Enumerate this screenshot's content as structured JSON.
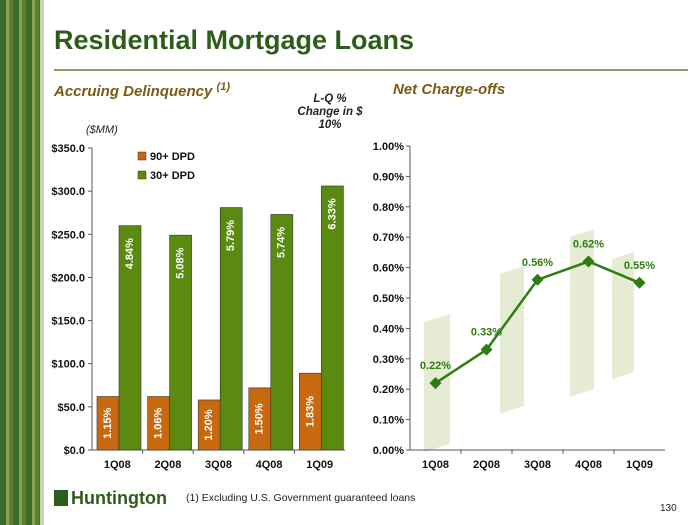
{
  "title": "Residential Mortgage Loans",
  "left_section": {
    "label": "Accruing Delinquency",
    "superscript": "(1)"
  },
  "right_section": {
    "label": "Net Charge-offs"
  },
  "lq_note": [
    "L-Q %",
    "Change in $",
    "10%"
  ],
  "units": "($MM)",
  "footnote": "(1)    Excluding U.S. Government guaranteed loans",
  "logo": "Huntington",
  "page_number": "130",
  "colors": {
    "brand_green": "#2e5c1a",
    "series_90": "#c8680f",
    "series_30": "#5a8a10",
    "line": "#2e7d10"
  },
  "chart_data": [
    {
      "type": "bar",
      "categories": [
        "1Q08",
        "2Q08",
        "3Q08",
        "4Q08",
        "1Q09"
      ],
      "ylim": [
        0,
        350
      ],
      "yticks": [
        "$0.0",
        "$50.0",
        "$100.0",
        "$150.0",
        "$200.0",
        "$250.0",
        "$300.0",
        "$350.0"
      ],
      "legend_placement": "top-right",
      "series": [
        {
          "name": "90+ DPD",
          "color": "#c8680f",
          "values": [
            62,
            62,
            58,
            72,
            89
          ],
          "labels": [
            "1.15%",
            "1.06%",
            "1.20%",
            "1.50%",
            "1.83%"
          ]
        },
        {
          "name": "30+ DPD",
          "color": "#5a8a10",
          "values": [
            260,
            249,
            281,
            273,
            306
          ],
          "labels": [
            "4.84%",
            "5.08%",
            "5.79%",
            "5.74%",
            "6.33%"
          ]
        }
      ]
    },
    {
      "type": "line",
      "categories": [
        "1Q08",
        "2Q08",
        "3Q08",
        "4Q08",
        "1Q09"
      ],
      "ylim": [
        0,
        1.0
      ],
      "yticks": [
        "0.00%",
        "0.10%",
        "0.20%",
        "0.30%",
        "0.40%",
        "0.50%",
        "0.60%",
        "0.70%",
        "0.80%",
        "0.90%",
        "1.00%"
      ],
      "values": [
        0.22,
        0.33,
        0.56,
        0.62,
        0.55
      ],
      "labels": [
        "0.22%",
        "0.33%",
        "0.56%",
        "0.62%",
        "0.55%"
      ]
    }
  ]
}
